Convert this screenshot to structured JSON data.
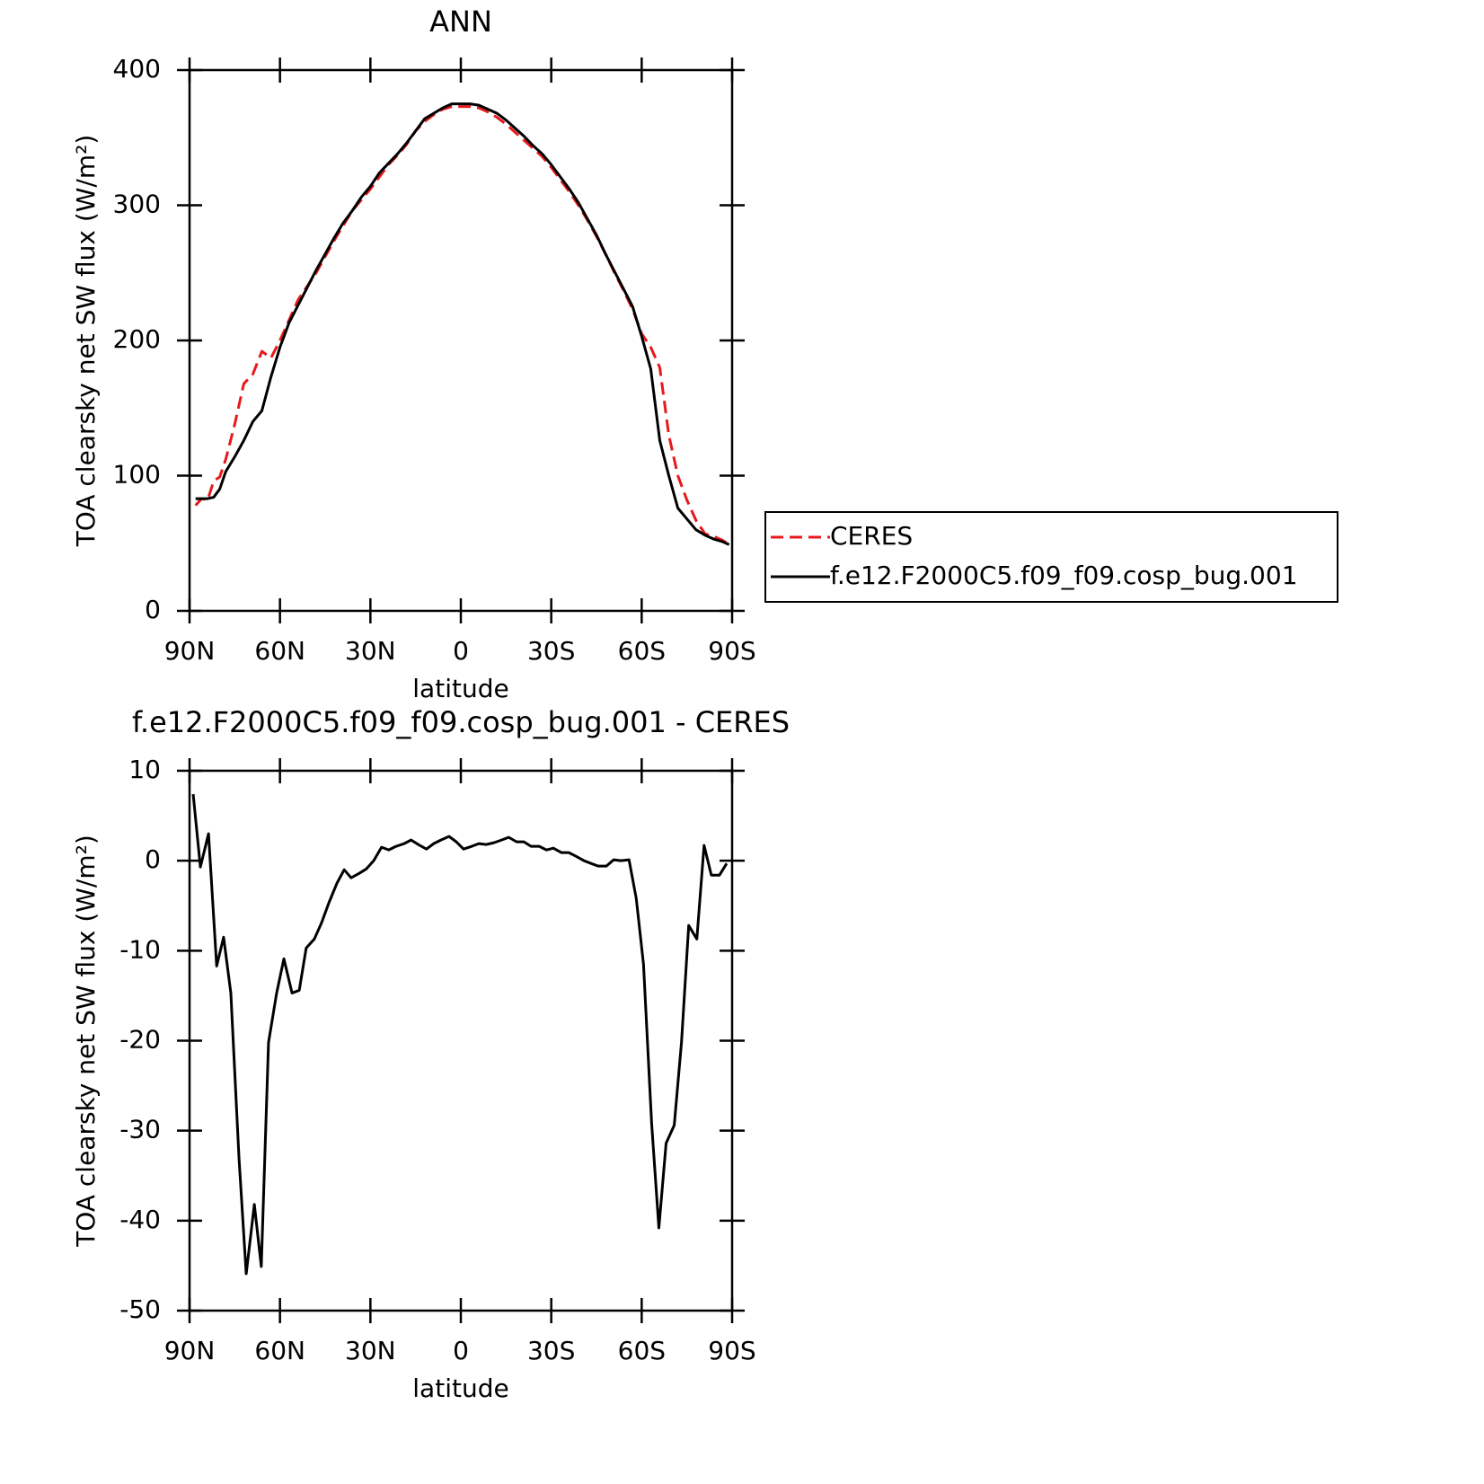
{
  "chart_data": [
    {
      "type": "line",
      "title": "ANN",
      "xlabel": "latitude",
      "ylabel": "TOA clearsky net SW flux (W/m²)",
      "x": [
        88,
        86,
        84,
        82,
        80,
        78,
        75,
        72,
        69,
        66,
        63,
        60,
        57,
        54,
        51,
        48,
        45,
        42,
        39,
        36,
        33,
        30,
        27,
        24,
        21,
        18,
        15,
        12,
        9,
        6,
        3,
        0,
        -3,
        -6,
        -9,
        -12,
        -15,
        -18,
        -21,
        -24,
        -27,
        -30,
        -33,
        -36,
        -39,
        -42,
        -45,
        -48,
        -51,
        -54,
        -57,
        -60,
        -63,
        -66,
        -69,
        -72,
        -75,
        -78,
        -81,
        -84,
        -87,
        -89
      ],
      "series": [
        {
          "name": "CERES",
          "color": "#e8191c",
          "dashed": true,
          "values": [
            78,
            83,
            82,
            96,
            99,
            112,
            138,
            168,
            175,
            192,
            187,
            200,
            215,
            230,
            240,
            250,
            262,
            274,
            285,
            296,
            304,
            312,
            321,
            330,
            337,
            345,
            355,
            362,
            367,
            371,
            373,
            373,
            373,
            372,
            369,
            365,
            360,
            354,
            348,
            342,
            336,
            328,
            319,
            310,
            300,
            289,
            277,
            264,
            250,
            237,
            223,
            205,
            195,
            180,
            130,
            100,
            82,
            67,
            57,
            55,
            52,
            49
          ]
        },
        {
          "name": "f.e12.F2000C5.f09_f09.cosp_bug.001",
          "color": "#000000",
          "dashed": false,
          "values": [
            83,
            83,
            83,
            84,
            90,
            103,
            114,
            126,
            140,
            148,
            173,
            195,
            213,
            226,
            239,
            252,
            264,
            276,
            287,
            296,
            306,
            314,
            324,
            331,
            338,
            346,
            355,
            364,
            368,
            372,
            375,
            375,
            375,
            374,
            371,
            368,
            363,
            357,
            351,
            344,
            338,
            330,
            321,
            312,
            302,
            290,
            278,
            264,
            251,
            238,
            225,
            203,
            179,
            126,
            100,
            76,
            68,
            60,
            56,
            53,
            51,
            49
          ]
        }
      ],
      "xlim": [
        90,
        -90
      ],
      "xticks": [
        {
          "value": 90,
          "label": "90N"
        },
        {
          "value": 60,
          "label": "60N"
        },
        {
          "value": 30,
          "label": "30N"
        },
        0,
        {
          "value": -30,
          "label": "30S"
        },
        {
          "value": -60,
          "label": "60S"
        },
        {
          "value": -90,
          "label": "90S"
        }
      ],
      "ylim": [
        0,
        400
      ],
      "yticks": [
        0,
        100,
        200,
        300,
        400
      ],
      "grid": false,
      "legend": "right"
    },
    {
      "type": "line",
      "title": "f.e12.F2000C5.f09_f09.cosp_bug.001 - CERES",
      "xlabel": "latitude",
      "ylabel": "TOA clearsky net SW flux (W/m²)",
      "x": [
        88.8,
        86.4,
        83.7,
        81,
        78.7,
        76.3,
        73.6,
        71.2,
        68.5,
        66.2,
        63.8,
        61.1,
        58.7,
        56,
        53.6,
        51.3,
        48.6,
        46.2,
        43.8,
        41.1,
        38.7,
        36.4,
        33.7,
        31.3,
        28.9,
        26.3,
        23.9,
        21.5,
        18.8,
        16.5,
        14.1,
        11.4,
        9,
        6.6,
        3.9,
        1.5,
        -0.9,
        -3.6,
        -6,
        -8.4,
        -11,
        -13.5,
        -15.9,
        -18.5,
        -20.9,
        -23.3,
        -26,
        -28.4,
        -30.7,
        -33.4,
        -35.8,
        -38.2,
        -40.9,
        -43.2,
        -45.6,
        -48.3,
        -50.7,
        -53.1,
        -55.8,
        -58.2,
        -60.6,
        -63.3,
        -65.7,
        -68.1,
        -70.8,
        -73.2,
        -75.6,
        -78.3,
        -80.7,
        -83.1,
        -85.8,
        -88.2
      ],
      "series": [
        {
          "name": "f.e12.F2000C5.f09_f09.cosp_bug.001",
          "color": "#000000",
          "dashed": false,
          "values": [
            7.4,
            -0.7,
            3,
            -11.7,
            -8.5,
            -14.7,
            -33,
            -45.9,
            -38.2,
            -45.1,
            -20.2,
            -14.7,
            -10.9,
            -14.7,
            -14.4,
            -9.7,
            -8.7,
            -6.9,
            -4.7,
            -2.5,
            -1,
            -1.9,
            -1.4,
            -0.9,
            0,
            1.5,
            1.2,
            1.6,
            1.9,
            2.3,
            1.8,
            1.3,
            1.9,
            2.3,
            2.7,
            2.1,
            1.3,
            1.6,
            1.9,
            1.8,
            2,
            2.3,
            2.6,
            2.1,
            2.1,
            1.6,
            1.6,
            1.2,
            1.4,
            0.9,
            0.9,
            0.5,
            0,
            -0.3,
            -0.6,
            -0.6,
            0.1,
            0,
            0.1,
            -4.2,
            -11.5,
            -29.2,
            -40.8,
            -31.4,
            -29.4,
            -20.2,
            -7.2,
            -8.7,
            1.7,
            -1.6,
            -1.6,
            -0.3
          ]
        }
      ],
      "xlim": [
        90,
        -90
      ],
      "xticks": [
        {
          "value": 90,
          "label": "90N"
        },
        {
          "value": 60,
          "label": "60N"
        },
        {
          "value": 30,
          "label": "30N"
        },
        0,
        {
          "value": -30,
          "label": "30S"
        },
        {
          "value": -60,
          "label": "60S"
        },
        {
          "value": -90,
          "label": "90S"
        }
      ],
      "ylim": [
        -50,
        10
      ],
      "yticks": [
        -50,
        -40,
        -30,
        -20,
        -10,
        0,
        10
      ],
      "grid": false
    }
  ]
}
